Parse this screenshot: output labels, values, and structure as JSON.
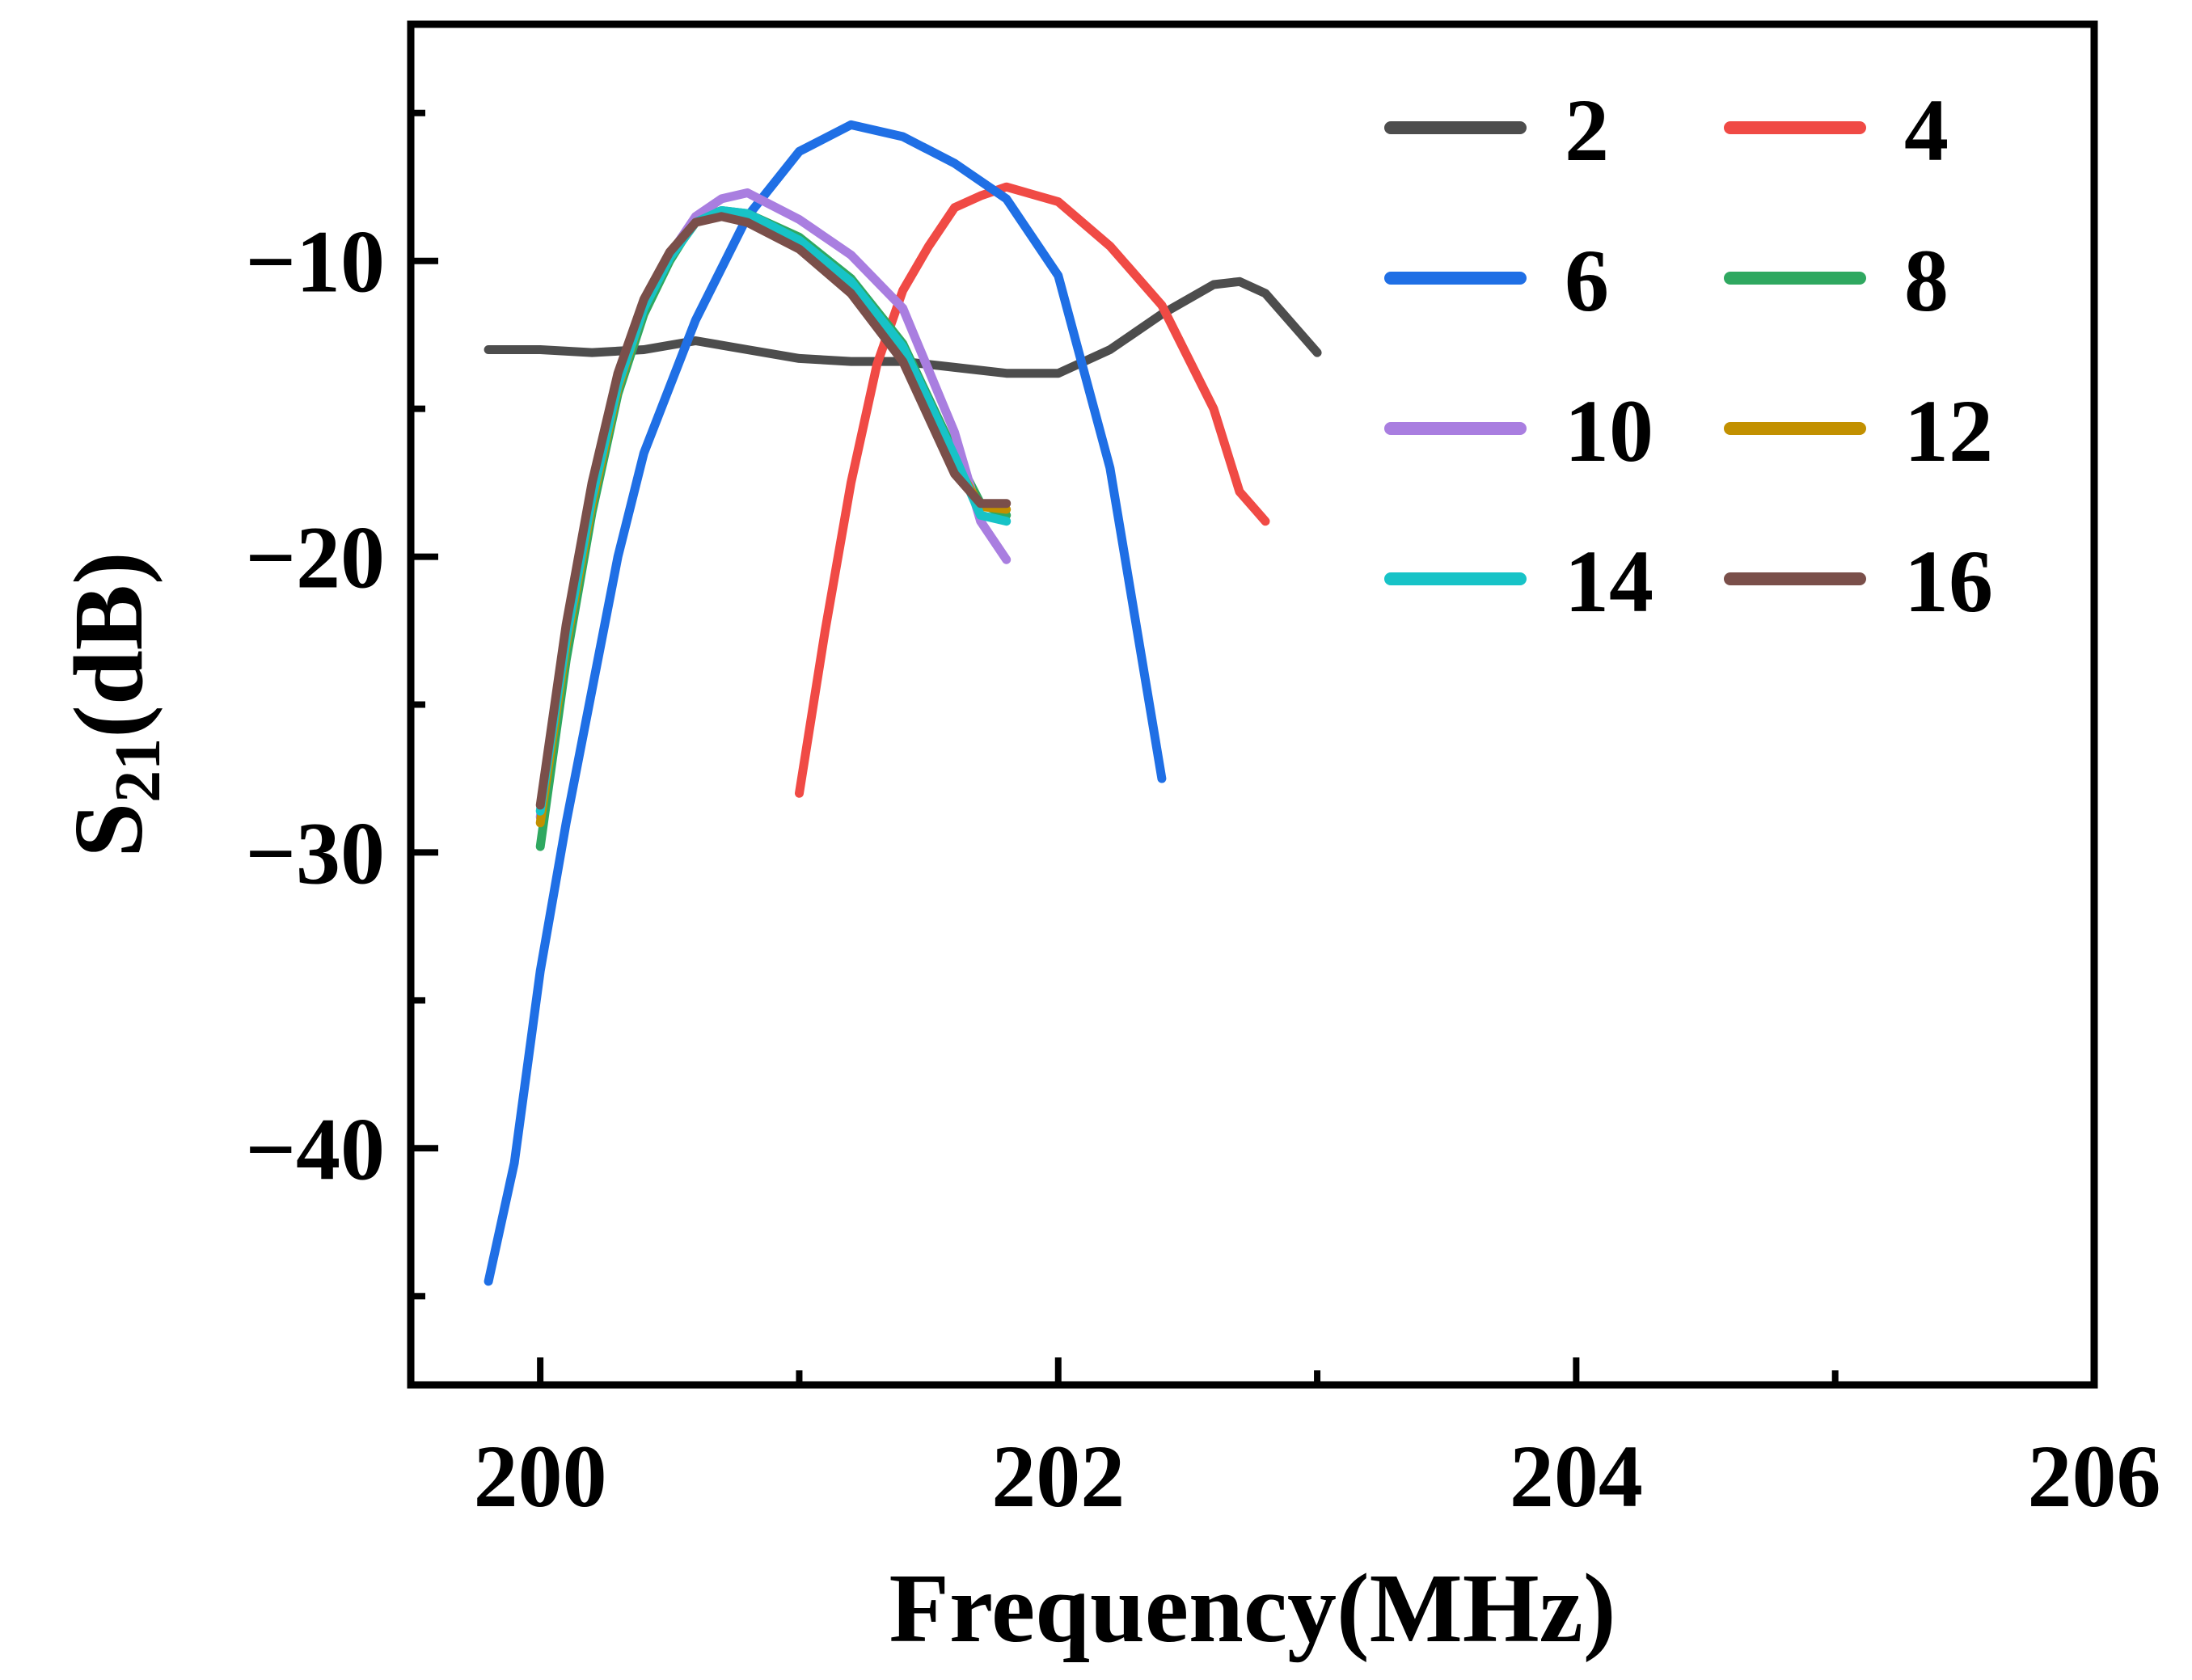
{
  "chart_data": {
    "type": "line",
    "title": "",
    "xlabel": "Frequency(MHz)",
    "ylabel": {
      "base": "S",
      "sub": "21",
      "rest": "(dB)"
    },
    "xlim": [
      199.5,
      206
    ],
    "ylim": [
      -48,
      -2
    ],
    "xticks": [
      200,
      202,
      204,
      206
    ],
    "xtick_labels": [
      "200",
      "202",
      "204",
      "206"
    ],
    "xminor": [
      201,
      203,
      205
    ],
    "yticks": [
      -10,
      -20,
      -30,
      -40
    ],
    "ytick_labels": [
      "−10",
      "−20",
      "−30",
      "−40"
    ],
    "yminor": [
      -5,
      -15,
      -25,
      -35,
      -45
    ],
    "grid": false,
    "legend_position": "top-right",
    "series": [
      {
        "name": "2",
        "color": "#4d4d4d",
        "x": [
          199.8,
          200.0,
          200.2,
          200.4,
          200.6,
          200.8,
          201.0,
          201.2,
          201.4,
          201.6,
          201.8,
          202.0,
          202.2,
          202.4,
          202.6,
          202.7,
          202.8,
          203.0
        ],
        "y": [
          -13.0,
          -13.0,
          -13.1,
          -13.0,
          -12.7,
          -13.0,
          -13.3,
          -13.4,
          -13.4,
          -13.6,
          -13.8,
          -13.8,
          -13.0,
          -11.8,
          -10.8,
          -10.7,
          -11.1,
          -13.1
        ]
      },
      {
        "name": "4",
        "color": "#f04a45",
        "x": [
          201.0,
          201.1,
          201.2,
          201.3,
          201.4,
          201.5,
          201.6,
          201.7,
          201.8,
          202.0,
          202.2,
          202.4,
          202.6,
          202.7,
          202.8
        ],
        "y": [
          -28.0,
          -22.5,
          -17.5,
          -13.5,
          -11.0,
          -9.5,
          -8.2,
          -7.8,
          -7.5,
          -8.0,
          -9.5,
          -11.5,
          -15.0,
          -17.8,
          -18.8
        ]
      },
      {
        "name": "6",
        "color": "#1f6fe5",
        "x": [
          199.8,
          199.9,
          200.0,
          200.1,
          200.2,
          200.3,
          200.4,
          200.6,
          200.8,
          201.0,
          201.2,
          201.4,
          201.6,
          201.8,
          202.0,
          202.2,
          202.4
        ],
        "y": [
          -44.5,
          -40.5,
          -34.0,
          -29.0,
          -24.5,
          -20.0,
          -16.5,
          -12.0,
          -8.5,
          -6.3,
          -5.4,
          -5.8,
          -6.7,
          -7.9,
          -10.5,
          -17.0,
          -27.5
        ]
      },
      {
        "name": "8",
        "color": "#2fa860",
        "x": [
          200.0,
          200.1,
          200.2,
          200.3,
          200.4,
          200.5,
          200.6,
          200.7,
          200.8,
          201.0,
          201.2,
          201.4,
          201.6,
          201.7,
          201.8
        ],
        "y": [
          -29.8,
          -23.5,
          -18.5,
          -14.5,
          -11.8,
          -10.0,
          -8.6,
          -8.3,
          -8.4,
          -9.2,
          -10.6,
          -12.8,
          -16.5,
          -18.2,
          -18.6
        ]
      },
      {
        "name": "10",
        "color": "#a97ee0",
        "x": [
          200.0,
          200.1,
          200.2,
          200.3,
          200.4,
          200.5,
          200.6,
          200.7,
          200.8,
          201.0,
          201.2,
          201.4,
          201.6,
          201.7,
          201.8
        ],
        "y": [
          -28.8,
          -22.5,
          -17.8,
          -14.0,
          -11.5,
          -9.8,
          -8.5,
          -7.9,
          -7.7,
          -8.6,
          -9.8,
          -11.6,
          -15.8,
          -18.8,
          -20.1
        ]
      },
      {
        "name": "12",
        "color": "#c29000",
        "x": [
          200.0,
          200.1,
          200.2,
          200.3,
          200.4,
          200.5,
          200.6,
          200.7,
          200.8,
          201.0,
          201.2,
          201.4,
          201.6,
          201.7,
          201.8
        ],
        "y": [
          -29.0,
          -23.0,
          -18.2,
          -14.3,
          -11.6,
          -9.9,
          -8.7,
          -8.4,
          -8.5,
          -9.4,
          -10.8,
          -13.0,
          -16.8,
          -18.3,
          -18.4
        ]
      },
      {
        "name": "14",
        "color": "#17c3c7",
        "x": [
          200.0,
          200.1,
          200.2,
          200.3,
          200.4,
          200.5,
          200.6,
          200.7,
          200.8,
          201.0,
          201.2,
          201.4,
          201.6,
          201.7,
          201.8
        ],
        "y": [
          -28.6,
          -22.8,
          -18.0,
          -14.2,
          -11.6,
          -9.9,
          -8.7,
          -8.3,
          -8.4,
          -9.3,
          -10.7,
          -12.9,
          -16.6,
          -18.6,
          -18.8
        ]
      },
      {
        "name": "16",
        "color": "#7a4f4a",
        "x": [
          200.0,
          200.1,
          200.2,
          200.3,
          200.4,
          200.5,
          200.6,
          200.7,
          200.8,
          201.0,
          201.2,
          201.4,
          201.6,
          201.7,
          201.8
        ],
        "y": [
          -28.4,
          -22.3,
          -17.5,
          -13.8,
          -11.3,
          -9.7,
          -8.7,
          -8.5,
          -8.7,
          -9.6,
          -11.1,
          -13.4,
          -17.2,
          -18.2,
          -18.2
        ]
      }
    ]
  }
}
